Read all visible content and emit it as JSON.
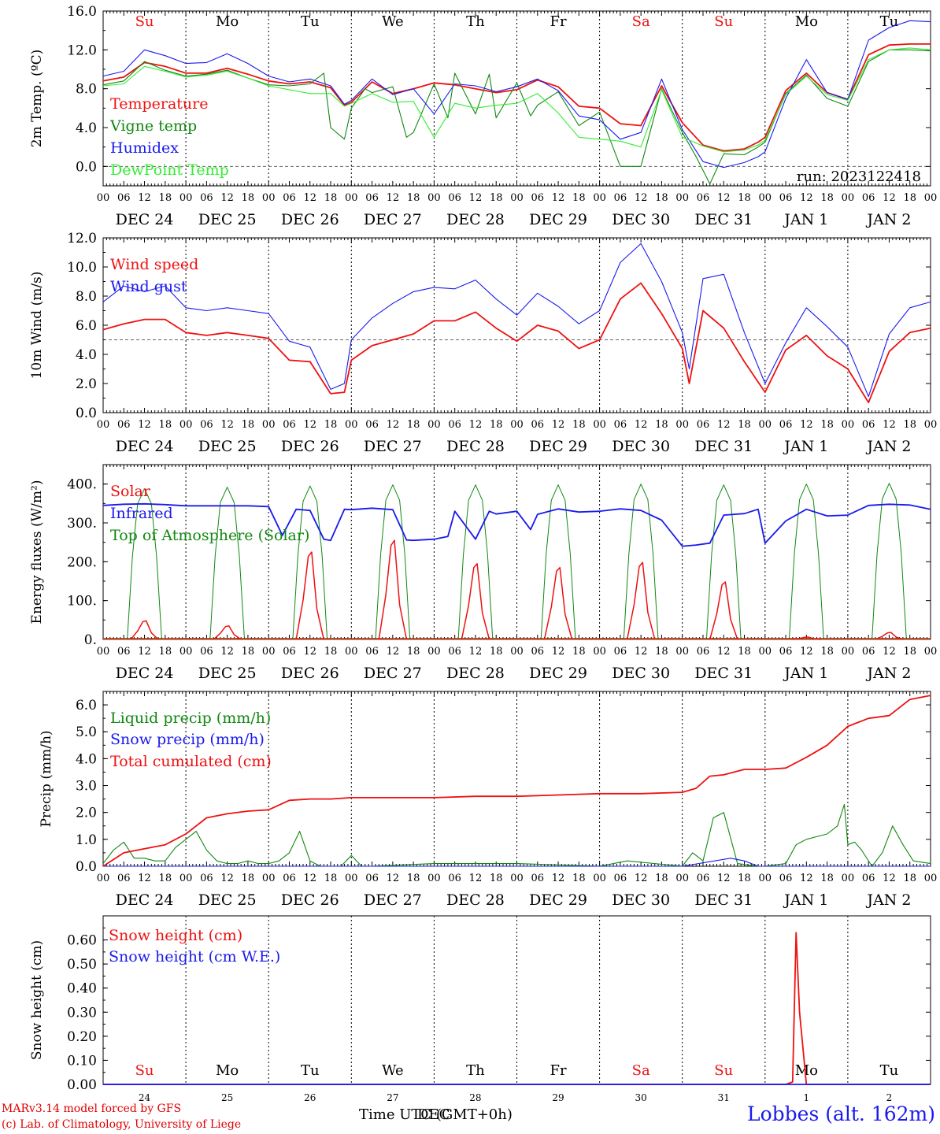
{
  "footer": {
    "model_credit": "MARv3.14 model forced by GFS",
    "lab_credit": "(c) Lab. of Climatology, University of Liege",
    "station": "Lobbes (alt. 162m)",
    "x_title": "Time UTC (GMT+0h)",
    "x_title_overlay": "DEC"
  },
  "time_axis": {
    "hour_ticks": [
      "00",
      "06",
      "12",
      "18"
    ],
    "day_labels": [
      "DEC 24",
      "DEC 25",
      "DEC 26",
      "DEC 27",
      "DEC 28",
      "DEC 29",
      "DEC 30",
      "DEC 31",
      "JAN  1",
      "JAN  2"
    ],
    "weekdays": [
      "Su",
      "Mo",
      "Tu",
      "We",
      "Th",
      "Fr",
      "Sa",
      "Su",
      "Mo",
      "Tu"
    ],
    "weekend_color": "#ee1111",
    "weekday_color": "#000000",
    "snow_day_numbers": [
      "24",
      "25",
      "26",
      "27",
      "28",
      "29",
      "30",
      "31",
      "1",
      "2"
    ]
  },
  "chart_data": [
    {
      "type": "line",
      "id": "temperature",
      "ylabel": "2m Temp. (ºC)",
      "ylim": [
        -2,
        16
      ],
      "yticks": [
        "16.0",
        "12.0",
        "8.0",
        "4.0",
        "0.0"
      ],
      "ytick_values": [
        16,
        12,
        8,
        4,
        0
      ],
      "ref_line": 0,
      "run_label": "run: 2023122418",
      "x_unit": "hours since 2023-12-24 00 UTC",
      "series": [
        {
          "name": "Temperature",
          "color": "#ee1111",
          "x": [
            0,
            6,
            12,
            18,
            24,
            30,
            36,
            42,
            48,
            54,
            60,
            66,
            70,
            72,
            78,
            84,
            90,
            96,
            102,
            108,
            114,
            120,
            126,
            132,
            138,
            144,
            150,
            156,
            162,
            168,
            174,
            180,
            186,
            190,
            192,
            198,
            204,
            210,
            216,
            222,
            228,
            234,
            240
          ],
          "values": [
            8.8,
            9.2,
            10.7,
            10.3,
            9.6,
            9.6,
            10.1,
            9.5,
            8.8,
            8.5,
            8.7,
            8.1,
            6.3,
            6.6,
            8.7,
            7.5,
            8.0,
            8.6,
            8.4,
            8.0,
            7.6,
            7.9,
            8.9,
            8.2,
            6.2,
            6.0,
            4.4,
            4.2,
            8.3,
            4.5,
            2.2,
            1.6,
            1.8,
            2.5,
            3.0,
            7.8,
            9.6,
            7.6,
            6.9,
            11.5,
            12.5,
            12.6,
            12.6
          ]
        },
        {
          "name": "Vigne temp",
          "color": "#118811",
          "x": [
            0,
            6,
            12,
            18,
            24,
            30,
            36,
            42,
            48,
            54,
            60,
            64,
            66,
            70,
            72,
            76,
            78,
            84,
            88,
            90,
            96,
            100,
            102,
            108,
            112,
            114,
            120,
            124,
            126,
            132,
            138,
            144,
            150,
            156,
            162,
            168,
            172,
            176,
            180,
            186,
            190,
            192,
            198,
            204,
            210,
            216,
            222,
            228,
            234,
            240
          ],
          "values": [
            8.4,
            8.8,
            10.8,
            9.9,
            9.3,
            9.5,
            9.9,
            9.1,
            8.4,
            8.3,
            8.5,
            9.6,
            4.0,
            2.8,
            6.0,
            8.0,
            7.6,
            8.2,
            3.0,
            3.5,
            8.5,
            5.0,
            9.6,
            5.4,
            9.5,
            5.0,
            8.6,
            5.2,
            6.3,
            7.7,
            4.2,
            5.6,
            0.0,
            0.0,
            8.0,
            3.5,
            1.0,
            -1.8,
            1.3,
            1.2,
            2.0,
            2.5,
            7.5,
            9.4,
            7.0,
            6.2,
            10.8,
            12.0,
            12.0,
            11.9
          ]
        },
        {
          "name": "Humidex",
          "color": "#1a1aee",
          "x": [
            0,
            6,
            12,
            18,
            24,
            30,
            36,
            42,
            48,
            54,
            60,
            66,
            70,
            72,
            78,
            84,
            90,
            96,
            102,
            108,
            114,
            120,
            126,
            132,
            138,
            144,
            150,
            156,
            162,
            168,
            174,
            180,
            186,
            190,
            192,
            198,
            204,
            210,
            216,
            222,
            228,
            234,
            240
          ],
          "values": [
            9.3,
            9.8,
            12.0,
            11.4,
            10.6,
            10.7,
            11.6,
            10.6,
            9.3,
            8.7,
            9.0,
            8.3,
            6.4,
            6.8,
            9.0,
            7.4,
            8.0,
            5.4,
            8.5,
            8.3,
            7.7,
            8.2,
            9.0,
            7.8,
            5.2,
            4.8,
            2.8,
            3.5,
            9.0,
            3.8,
            0.5,
            -0.1,
            0.4,
            1.0,
            1.5,
            7.0,
            11.0,
            7.6,
            6.9,
            13.0,
            14.3,
            15.0,
            14.9
          ]
        },
        {
          "name": "DewPoint Temp",
          "color": "#33ee33",
          "x": [
            0,
            6,
            12,
            18,
            24,
            30,
            36,
            42,
            48,
            54,
            60,
            66,
            70,
            72,
            78,
            84,
            90,
            96,
            102,
            108,
            114,
            120,
            126,
            132,
            138,
            144,
            150,
            156,
            162,
            168,
            174,
            180,
            186,
            190,
            192,
            198,
            204,
            210,
            216,
            222,
            228,
            234,
            240
          ],
          "values": [
            8.3,
            8.5,
            10.3,
            9.8,
            9.2,
            9.4,
            9.8,
            9.1,
            8.3,
            7.9,
            7.5,
            7.5,
            6.2,
            6.5,
            7.5,
            6.6,
            6.7,
            3.0,
            6.5,
            6.0,
            6.3,
            6.5,
            7.5,
            5.5,
            3.0,
            2.8,
            2.6,
            2.0,
            7.9,
            3.0,
            2.1,
            1.5,
            1.7,
            2.2,
            2.7,
            7.4,
            9.3,
            7.4,
            6.8,
            11.0,
            12.0,
            12.2,
            12.0
          ]
        }
      ]
    },
    {
      "type": "line",
      "id": "wind",
      "ylabel": "10m Wind (m/s)",
      "ylim": [
        0,
        12
      ],
      "yticks": [
        "12.0",
        "10.0",
        "8.0",
        "6.0",
        "4.0",
        "2.0",
        "0.0"
      ],
      "ytick_values": [
        12,
        10,
        8,
        6,
        4,
        2,
        0
      ],
      "ref_line": 5,
      "x_unit": "hours since 2023-12-24 00 UTC",
      "series": [
        {
          "name": "Wind speed",
          "color": "#ee1111",
          "x": [
            0,
            6,
            12,
            18,
            24,
            30,
            36,
            42,
            48,
            54,
            60,
            66,
            70,
            72,
            78,
            84,
            90,
            96,
            102,
            108,
            114,
            120,
            126,
            132,
            138,
            144,
            150,
            156,
            162,
            168,
            170,
            174,
            180,
            186,
            192,
            198,
            204,
            210,
            216,
            222,
            228,
            234,
            240
          ],
          "values": [
            5.7,
            6.1,
            6.4,
            6.4,
            5.5,
            5.3,
            5.5,
            5.3,
            5.1,
            3.6,
            3.5,
            1.3,
            1.4,
            3.6,
            4.6,
            5.0,
            5.4,
            6.3,
            6.3,
            6.9,
            5.8,
            4.9,
            6.0,
            5.6,
            4.4,
            5.0,
            7.8,
            8.9,
            6.8,
            4.4,
            2.0,
            7.0,
            5.8,
            3.5,
            1.4,
            4.3,
            5.3,
            3.9,
            3.0,
            0.7,
            4.2,
            5.5,
            5.8
          ]
        },
        {
          "name": "Wind gust",
          "color": "#1a1aee",
          "x": [
            0,
            6,
            12,
            18,
            24,
            30,
            36,
            42,
            48,
            54,
            60,
            66,
            70,
            72,
            78,
            84,
            90,
            96,
            102,
            108,
            114,
            120,
            126,
            132,
            138,
            144,
            150,
            156,
            162,
            168,
            170,
            174,
            180,
            186,
            192,
            198,
            204,
            210,
            216,
            222,
            228,
            234,
            240
          ],
          "values": [
            7.6,
            8.7,
            8.3,
            8.7,
            7.2,
            7.0,
            7.2,
            7.0,
            6.8,
            4.9,
            4.5,
            1.6,
            2.0,
            5.0,
            6.5,
            7.5,
            8.3,
            8.6,
            8.5,
            9.1,
            7.8,
            6.7,
            8.2,
            7.3,
            6.1,
            7.0,
            10.3,
            11.6,
            9.0,
            5.5,
            3.0,
            9.2,
            9.5,
            5.5,
            2.0,
            4.8,
            7.2,
            5.9,
            4.5,
            1.1,
            5.4,
            7.2,
            7.6
          ]
        }
      ]
    },
    {
      "type": "line",
      "id": "energy",
      "ylabel": "Energy fluxes (W/m²)",
      "ylim": [
        0,
        450
      ],
      "yticks": [
        "400.",
        "300.",
        "200.",
        "100.",
        "0."
      ],
      "ytick_values": [
        400,
        300,
        200,
        100,
        0
      ],
      "x_unit": "hours since 2023-12-24 00 UTC",
      "diurnal_peaks": {
        "day_offsets_hours": [
          0,
          24,
          48,
          72,
          96,
          120,
          144,
          168,
          192,
          216
        ],
        "solar_peak_values": [
          48,
          35,
          225,
          255,
          195,
          185,
          198,
          148,
          6,
          18
        ],
        "toa_solar_peak_values": [
          388,
          392,
          395,
          398,
          398,
          398,
          400,
          398,
          400,
          402
        ]
      },
      "series": [
        {
          "name": "Solar",
          "color": "#ee1111",
          "x": [],
          "values": []
        },
        {
          "name": "Infrared",
          "color": "#1a1aee",
          "x": [
            0,
            6,
            12,
            18,
            24,
            30,
            36,
            42,
            48,
            52,
            56,
            60,
            64,
            66,
            70,
            72,
            78,
            84,
            88,
            90,
            96,
            100,
            102,
            108,
            112,
            114,
            120,
            124,
            126,
            132,
            138,
            144,
            150,
            156,
            162,
            168,
            172,
            176,
            180,
            186,
            190,
            192,
            198,
            204,
            210,
            216,
            222,
            228,
            234,
            240
          ],
          "values": [
            345,
            348,
            349,
            347,
            344,
            344,
            344,
            344,
            342,
            268,
            335,
            332,
            258,
            255,
            335,
            334,
            338,
            334,
            256,
            255,
            258,
            265,
            330,
            258,
            330,
            323,
            330,
            283,
            322,
            336,
            328,
            330,
            336,
            332,
            307,
            240,
            243,
            248,
            320,
            324,
            335,
            248,
            305,
            335,
            318,
            320,
            345,
            348,
            346,
            335
          ]
        },
        {
          "name": "Top of Atmosphere (Solar)",
          "color": "#118811",
          "x": [],
          "values": []
        }
      ]
    },
    {
      "type": "line",
      "id": "precip",
      "ylabel": "Precip (mm/h)",
      "ylim": [
        0,
        6.5
      ],
      "yticks": [
        "6.0",
        "5.0",
        "4.0",
        "3.0",
        "2.0",
        "1.0",
        "0.0"
      ],
      "ytick_values": [
        6,
        5,
        4,
        3,
        2,
        1,
        0
      ],
      "x_unit": "hours since 2023-12-24 00 UTC",
      "series": [
        {
          "name": "Liquid precip (mm/h)",
          "color": "#118811",
          "x": [
            0,
            3,
            6,
            9,
            12,
            15,
            18,
            21,
            24,
            27,
            30,
            33,
            36,
            39,
            42,
            45,
            48,
            51,
            54,
            57,
            60,
            63,
            66,
            69,
            72,
            75,
            78,
            96,
            120,
            144,
            152,
            168,
            171,
            174,
            177,
            180,
            184,
            190,
            192,
            198,
            201,
            204,
            207,
            210,
            213,
            215,
            216,
            218,
            220,
            223,
            226,
            229,
            232,
            235,
            240
          ],
          "values": [
            0.1,
            0.6,
            0.9,
            0.3,
            0.3,
            0.2,
            0.2,
            0.7,
            1.0,
            1.3,
            0.6,
            0.2,
            0.1,
            0.1,
            0.2,
            0.1,
            0.1,
            0.2,
            0.5,
            1.3,
            0.2,
            0.0,
            0.0,
            0.0,
            0.4,
            0.0,
            0.0,
            0.1,
            0.1,
            0.0,
            0.2,
            0.0,
            0.5,
            0.2,
            1.8,
            2.0,
            0.1,
            0.0,
            0.0,
            0.1,
            0.8,
            1.0,
            1.1,
            1.2,
            1.5,
            2.3,
            0.8,
            0.9,
            0.6,
            0.0,
            0.5,
            1.5,
            0.8,
            0.2,
            0.1
          ]
        },
        {
          "name": "Snow precip (mm/h)",
          "color": "#1a1aee",
          "x": [
            0,
            168,
            182,
            186,
            190,
            240
          ],
          "values": [
            0.0,
            0.0,
            0.3,
            0.2,
            0.0,
            0.0
          ]
        },
        {
          "name": "Total cumulated (cm)",
          "color": "#ee1111",
          "x": [
            0,
            6,
            12,
            18,
            24,
            30,
            36,
            42,
            48,
            54,
            60,
            66,
            72,
            84,
            96,
            108,
            120,
            132,
            144,
            156,
            168,
            172,
            176,
            180,
            186,
            192,
            198,
            204,
            210,
            216,
            222,
            228,
            234,
            240
          ],
          "values": [
            0.0,
            0.5,
            0.65,
            0.8,
            1.2,
            1.8,
            1.95,
            2.05,
            2.1,
            2.45,
            2.5,
            2.5,
            2.55,
            2.55,
            2.55,
            2.6,
            2.6,
            2.65,
            2.7,
            2.7,
            2.75,
            2.9,
            3.35,
            3.4,
            3.6,
            3.6,
            3.65,
            4.05,
            4.5,
            5.2,
            5.5,
            5.6,
            6.2,
            6.35
          ]
        }
      ]
    },
    {
      "type": "line",
      "id": "snow",
      "ylabel": "Snow height (cm)",
      "ylim": [
        0,
        0.7
      ],
      "yticks": [
        "0.60",
        "0.50",
        "0.40",
        "0.30",
        "0.20",
        "0.10",
        "0.00"
      ],
      "ytick_values": [
        0.6,
        0.5,
        0.4,
        0.3,
        0.2,
        0.1,
        0.0
      ],
      "x_unit": "hours since 2023-12-24 00 UTC",
      "series": [
        {
          "name": "Snow height (cm)",
          "color": "#ee1111",
          "x": [
            0,
            198,
            200,
            201,
            202,
            204,
            240
          ],
          "values": [
            0,
            0,
            0.01,
            0.63,
            0.3,
            0,
            0
          ]
        },
        {
          "name": "Snow height (cm W.E.)",
          "color": "#1a1aee",
          "x": [
            0,
            240
          ],
          "values": [
            0,
            0
          ]
        }
      ]
    }
  ]
}
